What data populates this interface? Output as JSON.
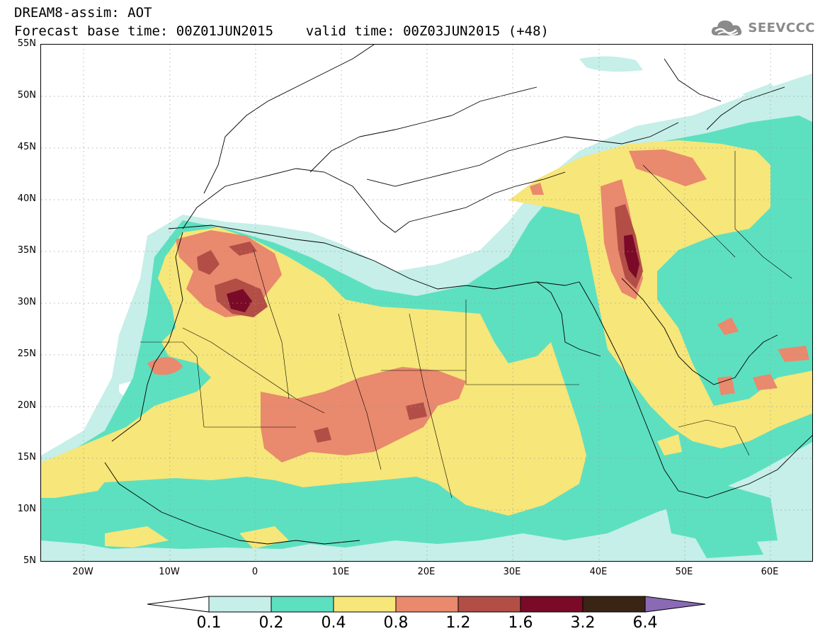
{
  "header": {
    "title_line1": "DREAM8-assim: AOT",
    "title_line2": "Forecast base time: 00Z01JUN2015    valid time: 00Z03JUN2015 (+48)"
  },
  "logo": {
    "text": "SEEVCCC",
    "icon": "cloud-icon",
    "color": "#8a8a8a"
  },
  "map": {
    "lat_labels": [
      "55N",
      "50N",
      "45N",
      "40N",
      "35N",
      "30N",
      "25N",
      "20N",
      "15N",
      "10N",
      "5N"
    ],
    "lon_labels": [
      "20W",
      "10W",
      "0",
      "10E",
      "20E",
      "30E",
      "40E",
      "50E",
      "60E"
    ],
    "extent": {
      "lon_min": -25,
      "lon_max": 65,
      "lat_min": 5,
      "lat_max": 55
    }
  },
  "colorbar": {
    "labels": [
      "0.1",
      "0.2",
      "0.4",
      "0.8",
      "1.2",
      "1.6",
      "3.2",
      "6.4"
    ],
    "colors": [
      "#ffffff",
      "#c5efe8",
      "#5de0c0",
      "#f7e679",
      "#e9896d",
      "#b24e46",
      "#7a0a28",
      "#3a2414",
      "#8a6ab5"
    ]
  },
  "chart_data": {
    "type": "heatmap",
    "variable": "AOT",
    "levels": [
      0.1,
      0.2,
      0.4,
      0.8,
      1.2,
      1.6,
      3.2,
      6.4
    ],
    "level_colors": [
      "#c5efe8",
      "#5de0c0",
      "#f7e679",
      "#e9896d",
      "#b24e46",
      "#7a0a28",
      "#3a2414",
      "#8a6ab5"
    ]
  }
}
